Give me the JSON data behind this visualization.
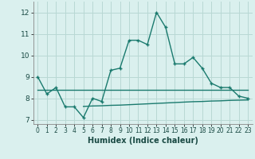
{
  "line1_x": [
    0,
    1,
    2,
    3,
    4,
    5,
    6,
    7,
    8,
    9,
    10,
    11,
    12,
    13,
    14,
    15,
    16,
    17,
    18,
    19,
    20,
    21,
    22,
    23
  ],
  "line1_y": [
    9.0,
    8.2,
    8.5,
    7.6,
    7.6,
    7.1,
    8.0,
    7.85,
    9.3,
    9.4,
    10.7,
    10.7,
    10.5,
    12.0,
    11.3,
    9.6,
    9.6,
    9.9,
    9.4,
    8.7,
    8.5,
    8.5,
    8.1,
    8.0
  ],
  "line2_x": [
    0,
    1,
    2,
    3,
    4,
    5,
    6,
    7,
    8,
    9,
    10,
    11,
    12,
    13,
    14,
    15,
    16,
    17,
    18,
    19,
    20,
    21,
    22,
    23
  ],
  "line2_y": [
    8.4,
    8.4,
    8.4,
    8.4,
    8.4,
    8.4,
    8.4,
    8.4,
    8.4,
    8.4,
    8.4,
    8.4,
    8.4,
    8.4,
    8.4,
    8.4,
    8.4,
    8.4,
    8.4,
    8.4,
    8.4,
    8.4,
    8.4,
    8.4
  ],
  "line3_x": [
    5,
    6,
    7,
    8,
    9,
    10,
    11,
    12,
    13,
    14,
    15,
    16,
    17,
    18,
    19,
    20,
    21,
    22,
    23
  ],
  "line3_y": [
    7.62,
    7.64,
    7.65,
    7.67,
    7.68,
    7.7,
    7.72,
    7.74,
    7.76,
    7.78,
    7.8,
    7.82,
    7.84,
    7.85,
    7.87,
    7.88,
    7.9,
    7.91,
    7.92
  ],
  "line_color": "#1a7a6e",
  "bg_color": "#daf0ee",
  "grid_color": "#b8d8d4",
  "xlabel": "Humidex (Indice chaleur)",
  "ylim": [
    6.8,
    12.5
  ],
  "xlim": [
    -0.5,
    23.5
  ],
  "yticks": [
    7,
    8,
    9,
    10,
    11,
    12
  ],
  "xticks": [
    0,
    1,
    2,
    3,
    4,
    5,
    6,
    7,
    8,
    9,
    10,
    11,
    12,
    13,
    14,
    15,
    16,
    17,
    18,
    19,
    20,
    21,
    22,
    23
  ]
}
